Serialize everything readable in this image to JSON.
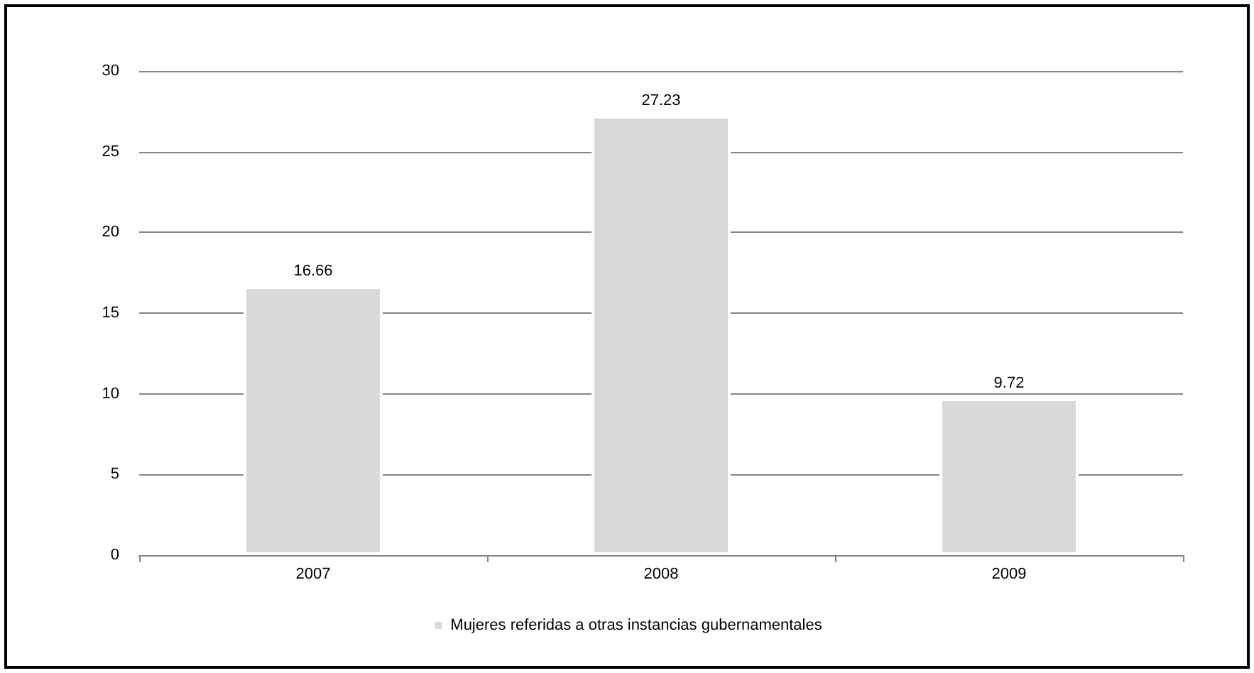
{
  "chart_data": {
    "type": "bar",
    "categories": [
      "2007",
      "2008",
      "2009"
    ],
    "series": [
      {
        "name": "Mujeres referidas a otras instancias gubernamentales",
        "color": "#d9d9d9",
        "values": [
          16.66,
          27.23,
          9.72
        ]
      }
    ],
    "ylim": [
      0,
      30
    ],
    "yticks": [
      0,
      5,
      10,
      15,
      20,
      25,
      30
    ],
    "grid": "y",
    "legend": "bottom",
    "data_labels": true
  }
}
